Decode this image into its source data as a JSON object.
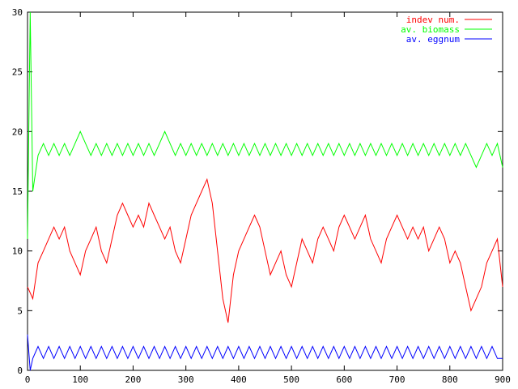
{
  "chart_data": {
    "type": "line",
    "title": "",
    "xlabel": "",
    "ylabel": "",
    "xlim": [
      0,
      900
    ],
    "ylim": [
      0,
      30
    ],
    "x_ticks": [
      0,
      100,
      200,
      300,
      400,
      500,
      600,
      700,
      800,
      900
    ],
    "y_ticks": [
      0,
      5,
      10,
      15,
      20,
      25,
      30
    ],
    "x_tick_labels": [
      "0",
      "100",
      "200",
      "300",
      "400",
      "500",
      "600",
      "700",
      "800",
      "900"
    ],
    "y_tick_labels": [
      "0",
      "5",
      "10",
      "15",
      "20",
      "25",
      "30"
    ],
    "grid": false,
    "legend_position": "top-right",
    "series": [
      {
        "name": "indev num.",
        "color": "#ff0000",
        "values": [
          [
            0,
            7
          ],
          [
            10,
            6
          ],
          [
            20,
            9
          ],
          [
            30,
            10
          ],
          [
            40,
            11
          ],
          [
            50,
            12
          ],
          [
            60,
            11
          ],
          [
            70,
            12
          ],
          [
            80,
            10
          ],
          [
            90,
            9
          ],
          [
            100,
            8
          ],
          [
            110,
            10
          ],
          [
            120,
            11
          ],
          [
            130,
            12
          ],
          [
            140,
            10
          ],
          [
            150,
            9
          ],
          [
            160,
            11
          ],
          [
            170,
            13
          ],
          [
            180,
            14
          ],
          [
            190,
            13
          ],
          [
            200,
            12
          ],
          [
            210,
            13
          ],
          [
            220,
            12
          ],
          [
            230,
            14
          ],
          [
            240,
            13
          ],
          [
            250,
            12
          ],
          [
            260,
            11
          ],
          [
            270,
            12
          ],
          [
            280,
            10
          ],
          [
            290,
            9
          ],
          [
            300,
            11
          ],
          [
            310,
            13
          ],
          [
            320,
            14
          ],
          [
            330,
            15
          ],
          [
            340,
            16
          ],
          [
            350,
            14
          ],
          [
            360,
            10
          ],
          [
            370,
            6
          ],
          [
            380,
            4
          ],
          [
            390,
            8
          ],
          [
            400,
            10
          ],
          [
            410,
            11
          ],
          [
            420,
            12
          ],
          [
            430,
            13
          ],
          [
            440,
            12
          ],
          [
            450,
            10
          ],
          [
            460,
            8
          ],
          [
            470,
            9
          ],
          [
            480,
            10
          ],
          [
            490,
            8
          ],
          [
            500,
            7
          ],
          [
            510,
            9
          ],
          [
            520,
            11
          ],
          [
            530,
            10
          ],
          [
            540,
            9
          ],
          [
            550,
            11
          ],
          [
            560,
            12
          ],
          [
            570,
            11
          ],
          [
            580,
            10
          ],
          [
            590,
            12
          ],
          [
            600,
            13
          ],
          [
            610,
            12
          ],
          [
            620,
            11
          ],
          [
            630,
            12
          ],
          [
            640,
            13
          ],
          [
            650,
            11
          ],
          [
            660,
            10
          ],
          [
            670,
            9
          ],
          [
            680,
            11
          ],
          [
            690,
            12
          ],
          [
            700,
            13
          ],
          [
            710,
            12
          ],
          [
            720,
            11
          ],
          [
            730,
            12
          ],
          [
            740,
            11
          ],
          [
            750,
            12
          ],
          [
            760,
            10
          ],
          [
            770,
            11
          ],
          [
            780,
            12
          ],
          [
            790,
            11
          ],
          [
            800,
            9
          ],
          [
            810,
            10
          ],
          [
            820,
            9
          ],
          [
            830,
            7
          ],
          [
            840,
            5
          ],
          [
            850,
            6
          ],
          [
            860,
            7
          ],
          [
            870,
            9
          ],
          [
            880,
            10
          ],
          [
            890,
            11
          ],
          [
            900,
            7
          ]
        ]
      },
      {
        "name": "av. biomass",
        "color": "#00ff00",
        "values": [
          [
            0,
            11
          ],
          [
            5,
            30
          ],
          [
            10,
            15
          ],
          [
            20,
            18
          ],
          [
            30,
            19
          ],
          [
            40,
            18
          ],
          [
            50,
            19
          ],
          [
            60,
            18
          ],
          [
            70,
            19
          ],
          [
            80,
            18
          ],
          [
            90,
            19
          ],
          [
            100,
            20
          ],
          [
            110,
            19
          ],
          [
            120,
            18
          ],
          [
            130,
            19
          ],
          [
            140,
            18
          ],
          [
            150,
            19
          ],
          [
            160,
            18
          ],
          [
            170,
            19
          ],
          [
            180,
            18
          ],
          [
            190,
            19
          ],
          [
            200,
            18
          ],
          [
            210,
            19
          ],
          [
            220,
            18
          ],
          [
            230,
            19
          ],
          [
            240,
            18
          ],
          [
            250,
            19
          ],
          [
            260,
            20
          ],
          [
            270,
            19
          ],
          [
            280,
            18
          ],
          [
            290,
            19
          ],
          [
            300,
            18
          ],
          [
            310,
            19
          ],
          [
            320,
            18
          ],
          [
            330,
            19
          ],
          [
            340,
            18
          ],
          [
            350,
            19
          ],
          [
            360,
            18
          ],
          [
            370,
            19
          ],
          [
            380,
            18
          ],
          [
            390,
            19
          ],
          [
            400,
            18
          ],
          [
            410,
            19
          ],
          [
            420,
            18
          ],
          [
            430,
            19
          ],
          [
            440,
            18
          ],
          [
            450,
            19
          ],
          [
            460,
            18
          ],
          [
            470,
            19
          ],
          [
            480,
            18
          ],
          [
            490,
            19
          ],
          [
            500,
            18
          ],
          [
            510,
            19
          ],
          [
            520,
            18
          ],
          [
            530,
            19
          ],
          [
            540,
            18
          ],
          [
            550,
            19
          ],
          [
            560,
            18
          ],
          [
            570,
            19
          ],
          [
            580,
            18
          ],
          [
            590,
            19
          ],
          [
            600,
            18
          ],
          [
            610,
            19
          ],
          [
            620,
            18
          ],
          [
            630,
            19
          ],
          [
            640,
            18
          ],
          [
            650,
            19
          ],
          [
            660,
            18
          ],
          [
            670,
            19
          ],
          [
            680,
            18
          ],
          [
            690,
            19
          ],
          [
            700,
            18
          ],
          [
            710,
            19
          ],
          [
            720,
            18
          ],
          [
            730,
            19
          ],
          [
            740,
            18
          ],
          [
            750,
            19
          ],
          [
            760,
            18
          ],
          [
            770,
            19
          ],
          [
            780,
            18
          ],
          [
            790,
            19
          ],
          [
            800,
            18
          ],
          [
            810,
            19
          ],
          [
            820,
            18
          ],
          [
            830,
            19
          ],
          [
            840,
            18
          ],
          [
            850,
            17
          ],
          [
            860,
            18
          ],
          [
            870,
            19
          ],
          [
            880,
            18
          ],
          [
            890,
            19
          ],
          [
            900,
            17
          ]
        ]
      },
      {
        "name": "av. eggnum",
        "color": "#0000ff",
        "values": [
          [
            0,
            3
          ],
          [
            5,
            0
          ],
          [
            10,
            1
          ],
          [
            20,
            2
          ],
          [
            30,
            1
          ],
          [
            40,
            2
          ],
          [
            50,
            1
          ],
          [
            60,
            2
          ],
          [
            70,
            1
          ],
          [
            80,
            2
          ],
          [
            90,
            1
          ],
          [
            100,
            2
          ],
          [
            110,
            1
          ],
          [
            120,
            2
          ],
          [
            130,
            1
          ],
          [
            140,
            2
          ],
          [
            150,
            1
          ],
          [
            160,
            2
          ],
          [
            170,
            1
          ],
          [
            180,
            2
          ],
          [
            190,
            1
          ],
          [
            200,
            2
          ],
          [
            210,
            1
          ],
          [
            220,
            2
          ],
          [
            230,
            1
          ],
          [
            240,
            2
          ],
          [
            250,
            1
          ],
          [
            260,
            2
          ],
          [
            270,
            1
          ],
          [
            280,
            2
          ],
          [
            290,
            1
          ],
          [
            300,
            2
          ],
          [
            310,
            1
          ],
          [
            320,
            2
          ],
          [
            330,
            1
          ],
          [
            340,
            2
          ],
          [
            350,
            1
          ],
          [
            360,
            2
          ],
          [
            370,
            1
          ],
          [
            380,
            2
          ],
          [
            390,
            1
          ],
          [
            400,
            2
          ],
          [
            410,
            1
          ],
          [
            420,
            2
          ],
          [
            430,
            1
          ],
          [
            440,
            2
          ],
          [
            450,
            1
          ],
          [
            460,
            2
          ],
          [
            470,
            1
          ],
          [
            480,
            2
          ],
          [
            490,
            1
          ],
          [
            500,
            2
          ],
          [
            510,
            1
          ],
          [
            520,
            2
          ],
          [
            530,
            1
          ],
          [
            540,
            2
          ],
          [
            550,
            1
          ],
          [
            560,
            2
          ],
          [
            570,
            1
          ],
          [
            580,
            2
          ],
          [
            590,
            1
          ],
          [
            600,
            2
          ],
          [
            610,
            1
          ],
          [
            620,
            2
          ],
          [
            630,
            1
          ],
          [
            640,
            2
          ],
          [
            650,
            1
          ],
          [
            660,
            2
          ],
          [
            670,
            1
          ],
          [
            680,
            2
          ],
          [
            690,
            1
          ],
          [
            700,
            2
          ],
          [
            710,
            1
          ],
          [
            720,
            2
          ],
          [
            730,
            1
          ],
          [
            740,
            2
          ],
          [
            750,
            1
          ],
          [
            760,
            2
          ],
          [
            770,
            1
          ],
          [
            780,
            2
          ],
          [
            790,
            1
          ],
          [
            800,
            2
          ],
          [
            810,
            1
          ],
          [
            820,
            2
          ],
          [
            830,
            1
          ],
          [
            840,
            2
          ],
          [
            850,
            1
          ],
          [
            860,
            2
          ],
          [
            870,
            1
          ],
          [
            880,
            2
          ],
          [
            890,
            1
          ],
          [
            900,
            1
          ]
        ]
      }
    ]
  }
}
